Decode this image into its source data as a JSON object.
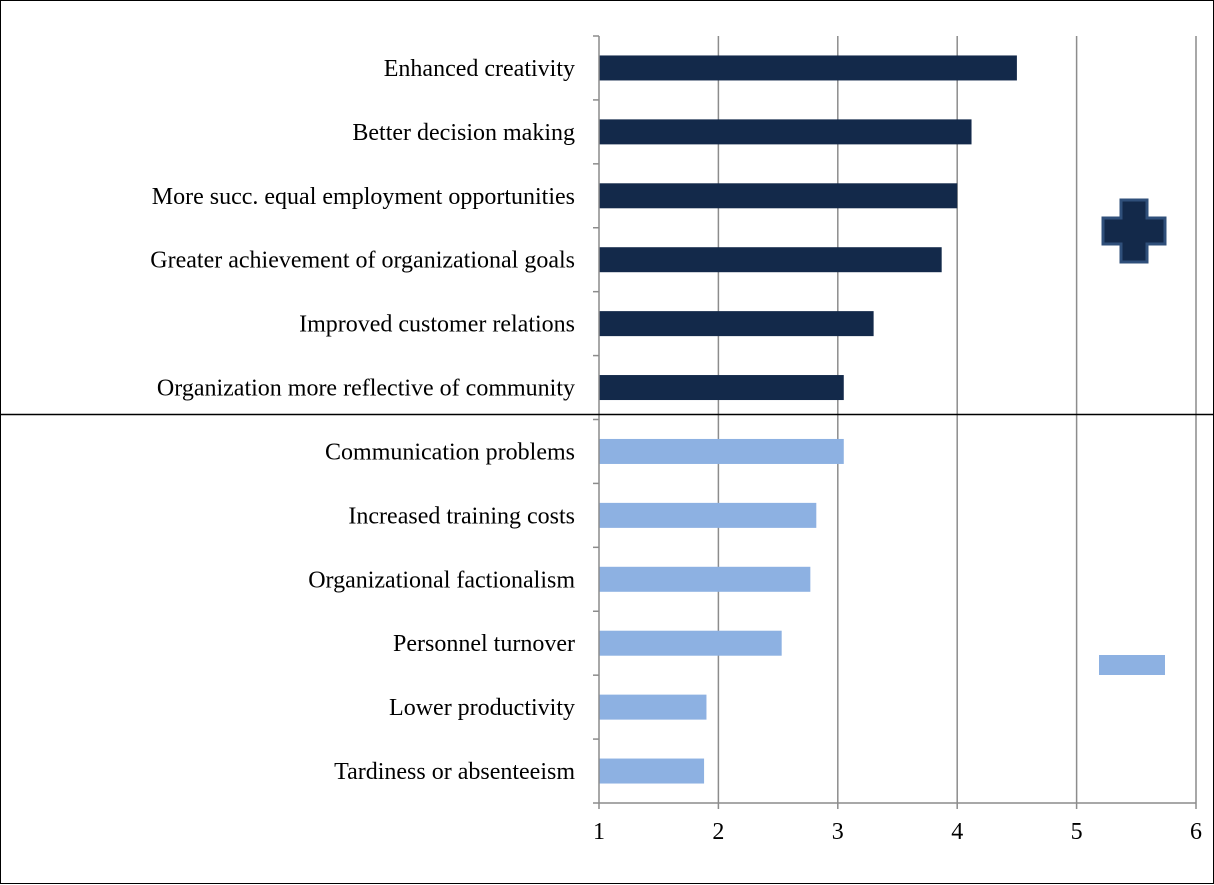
{
  "chart_data": {
    "type": "bar",
    "orientation": "horizontal",
    "title": "",
    "xlabel": "",
    "ylabel": "",
    "xlim": [
      1,
      6
    ],
    "xticks": [
      1,
      2,
      3,
      4,
      5,
      6
    ],
    "grid": true,
    "legend": "none",
    "groups": [
      {
        "id": "positive",
        "symbol": "+",
        "color": "#13294a",
        "categories": [
          "Enhanced creativity",
          "Better decision making",
          "More succ. equal employment opportunities",
          "Greater achievement of organizational goals",
          "Improved customer relations",
          "Organization more reflective of community"
        ],
        "values": [
          4.5,
          4.12,
          4.0,
          3.87,
          3.3,
          3.05
        ]
      },
      {
        "id": "negative",
        "symbol": "-",
        "color": "#8db1e2",
        "categories": [
          "Communication problems",
          "Increased training costs",
          "Organizational factionalism",
          "Personnel turnover",
          "Lower productivity",
          "Tardiness or absenteeism"
        ],
        "values": [
          3.05,
          2.82,
          2.77,
          2.53,
          1.9,
          1.88
        ]
      }
    ]
  }
}
